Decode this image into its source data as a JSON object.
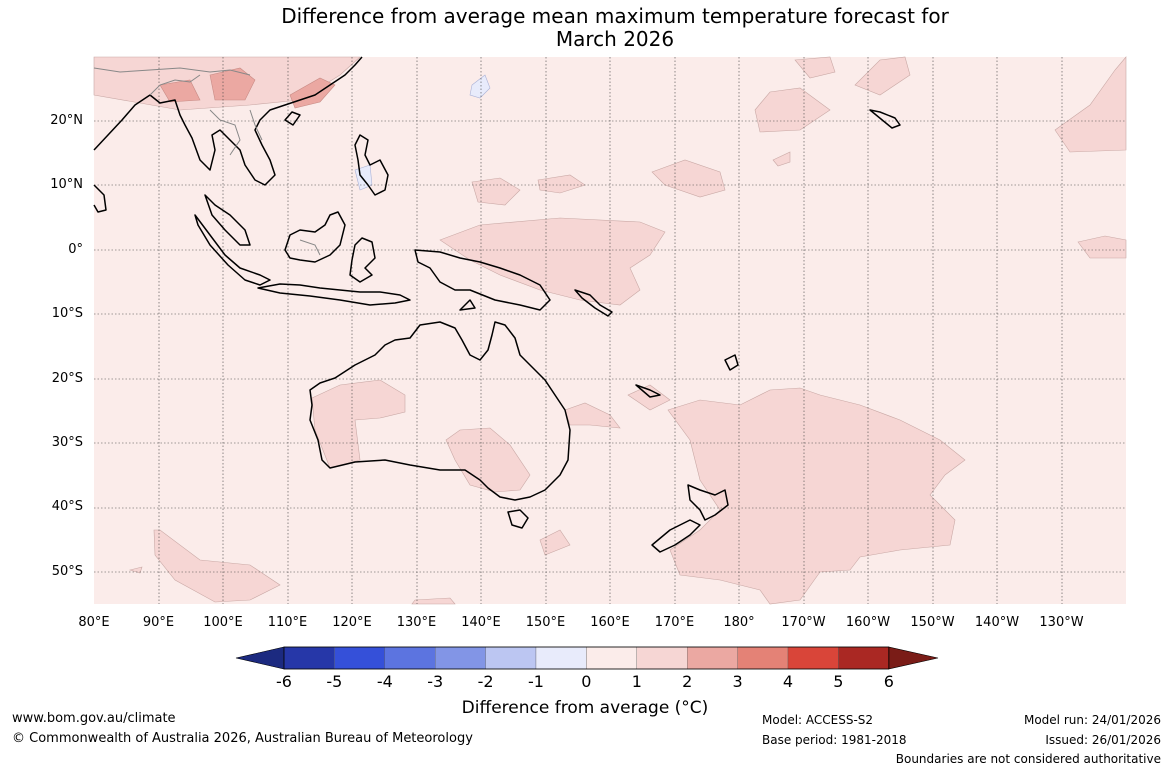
{
  "title_line1": "Difference from average mean maximum temperature forecast for",
  "title_line2": "March 2026",
  "lat_labels": [
    "20°N",
    "10°N",
    "0°",
    "10°S",
    "20°S",
    "30°S",
    "40°S",
    "50°S"
  ],
  "lon_labels": [
    "80°E",
    "90°E",
    "100°E",
    "110°E",
    "120°E",
    "130°E",
    "140°E",
    "150°E",
    "160°E",
    "170°E",
    "180°",
    "170°W",
    "160°W",
    "150°W",
    "140°W",
    "130°W"
  ],
  "colorbar": {
    "ticks": [
      "-6",
      "-5",
      "-4",
      "-3",
      "-2",
      "-1",
      "0",
      "1",
      "2",
      "3",
      "4",
      "5",
      "6"
    ],
    "colors": [
      "#1c2a80",
      "#2637a8",
      "#3550d9",
      "#5c74e0",
      "#8295e6",
      "#bcc6f2",
      "#e8ebfb",
      "#fbecea",
      "#f6d6d4",
      "#eba8a2",
      "#e48276",
      "#d94539",
      "#aa2823",
      "#7a1c17"
    ],
    "label": "Difference from average (°C)"
  },
  "footer": {
    "website": "www.bom.gov.au/climate",
    "copyright": "© Commonwealth of Australia 2026, Australian Bureau of Meteorology",
    "model": "Model: ACCESS-S2",
    "base_period": "Base period: 1981-2018",
    "model_run": "Model run: 24/01/2026",
    "issued": "Issued: 26/01/2026",
    "disclaimer": "Boundaries are not considered authoritative"
  }
}
